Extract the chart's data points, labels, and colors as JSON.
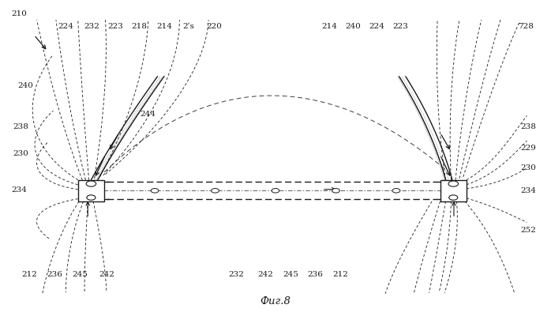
{
  "title": "Фиг.8",
  "bg_color": "#ffffff",
  "line_color": "#1a1a1a",
  "figsize": [
    6.98,
    4.0
  ],
  "dpi": 100
}
